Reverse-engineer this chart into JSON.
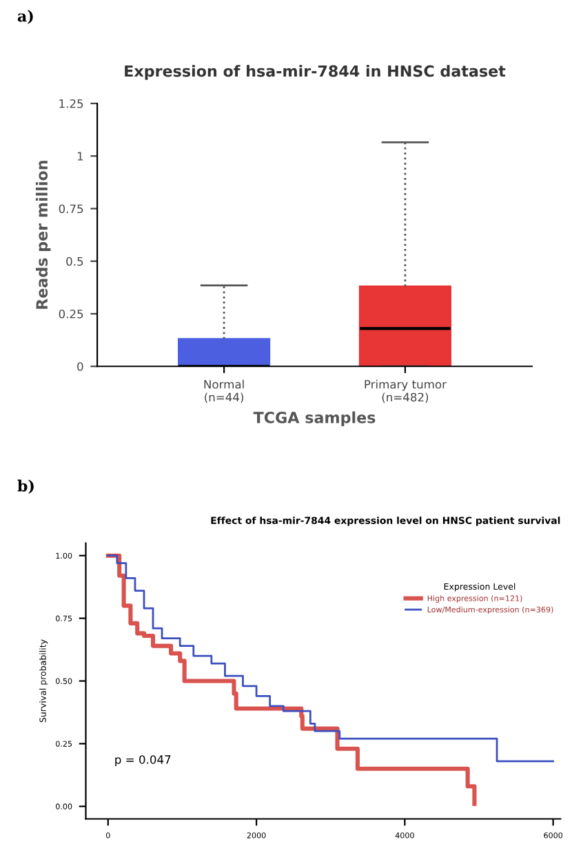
{
  "chart_data": [
    {
      "type": "box",
      "title": "Expression of hsa-mir-7844 in HNSC dataset",
      "xlabel": "TCGA samples",
      "ylabel": "Reads per million",
      "annotations": [
        "a)"
      ],
      "categories": [
        "Normal\n(n=44)",
        "Primary tumor\n(n=482)"
      ],
      "colors": [
        "#4c5fe0",
        "#e83535"
      ],
      "boxes": [
        {
          "low": 0,
          "q1": 0,
          "median": 0,
          "q3": 0.13,
          "high": 0.385
        },
        {
          "low": 0,
          "q1": 0,
          "median": 0.18,
          "q3": 0.38,
          "high": 1.065
        }
      ],
      "ylim": [
        0,
        1.25
      ],
      "yticks": [
        0,
        0.25,
        0.5,
        0.75,
        1,
        1.25
      ],
      "grid": false
    },
    {
      "type": "step",
      "title": "Effect of hsa-mir-7844 expression level on HNSC patient survival",
      "ylabel": "Survival probability",
      "legend_title": "Expression Level",
      "annotations": [
        "b)",
        "p = 0.047"
      ],
      "series": [
        {
          "name": "High expression (n=121)",
          "color": "#d9534f",
          "x": [
            0,
            152,
            212,
            303,
            394,
            485,
            606,
            848,
            970,
            1030,
            1697,
            1727,
            2606,
            2620,
            3091,
            3364,
            4848,
            4939
          ],
          "values": [
            1.0,
            0.92,
            0.8,
            0.73,
            0.69,
            0.68,
            0.64,
            0.61,
            0.58,
            0.5,
            0.45,
            0.39,
            0.36,
            0.31,
            0.23,
            0.15,
            0.08,
            0.01
          ]
        },
        {
          "name": "Low/Medium-expression (n=369)",
          "color": "#3c4fbf",
          "x": [
            0,
            121,
            242,
            364,
            485,
            606,
            727,
            970,
            1152,
            1394,
            1576,
            1818,
            2000,
            2182,
            2364,
            2727,
            2788,
            3121,
            5242,
            6000
          ],
          "values": [
            1.0,
            0.97,
            0.91,
            0.86,
            0.79,
            0.71,
            0.67,
            0.64,
            0.6,
            0.57,
            0.52,
            0.48,
            0.44,
            0.4,
            0.38,
            0.33,
            0.3,
            0.27,
            0.18,
            0.18
          ]
        }
      ],
      "xlim": [
        -300,
        6100
      ],
      "xticks": [
        0,
        2000,
        4000,
        6000
      ],
      "ylim": [
        -0.05,
        1.05
      ],
      "yticks": [
        {
          "value": 0,
          "label": "0.00"
        },
        {
          "value": 0.25,
          "label": "0.25"
        },
        {
          "value": 0.5,
          "label": "0.50"
        },
        {
          "value": 0.75,
          "label": "0.75"
        },
        {
          "value": 1,
          "label": "1.00"
        }
      ],
      "grid": false,
      "legend": "top right",
      "line_style": "solid",
      "marker": "none"
    }
  ]
}
